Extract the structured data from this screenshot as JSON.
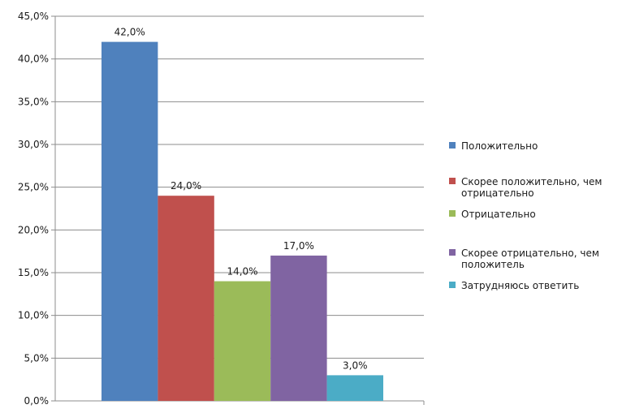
{
  "chart_data": {
    "type": "bar",
    "categories": [
      "Положительно",
      "Скорее положительно, чем отрицательно",
      "Отрицательно",
      "Скорее отрицательно, чем положитель",
      "Затрудняюсь ответить"
    ],
    "values": [
      42.0,
      24.0,
      14.0,
      17.0,
      3.0
    ],
    "data_labels": [
      "42,0%",
      "24,0%",
      "14,0%",
      "17,0%",
      "3,0%"
    ],
    "colors": [
      "#4f81bd",
      "#c0504d",
      "#9bbb59",
      "#8064a2",
      "#4bacc6"
    ],
    "legend": [
      {
        "lines": [
          "Положительно"
        ]
      },
      {
        "lines": [
          "Скорее положительно, чем",
          "отрицательно"
        ]
      },
      {
        "lines": [
          "Отрицательно"
        ]
      },
      {
        "lines": [
          "Скорее отрицательно, чем",
          "положитель"
        ]
      },
      {
        "lines": [
          "Затрудняюсь ответить"
        ]
      }
    ],
    "y_ticks": [
      0,
      5,
      10,
      15,
      20,
      25,
      30,
      35,
      40,
      45
    ],
    "y_tick_labels": [
      "0,0%",
      "5,0%",
      "10,0%",
      "15,0%",
      "20,0%",
      "25,0%",
      "30,0%",
      "35,0%",
      "40,0%",
      "45,0%"
    ],
    "ylim": [
      0,
      45
    ],
    "grid": true,
    "legend_position": "right",
    "title": "",
    "xlabel": "",
    "ylabel": ""
  }
}
